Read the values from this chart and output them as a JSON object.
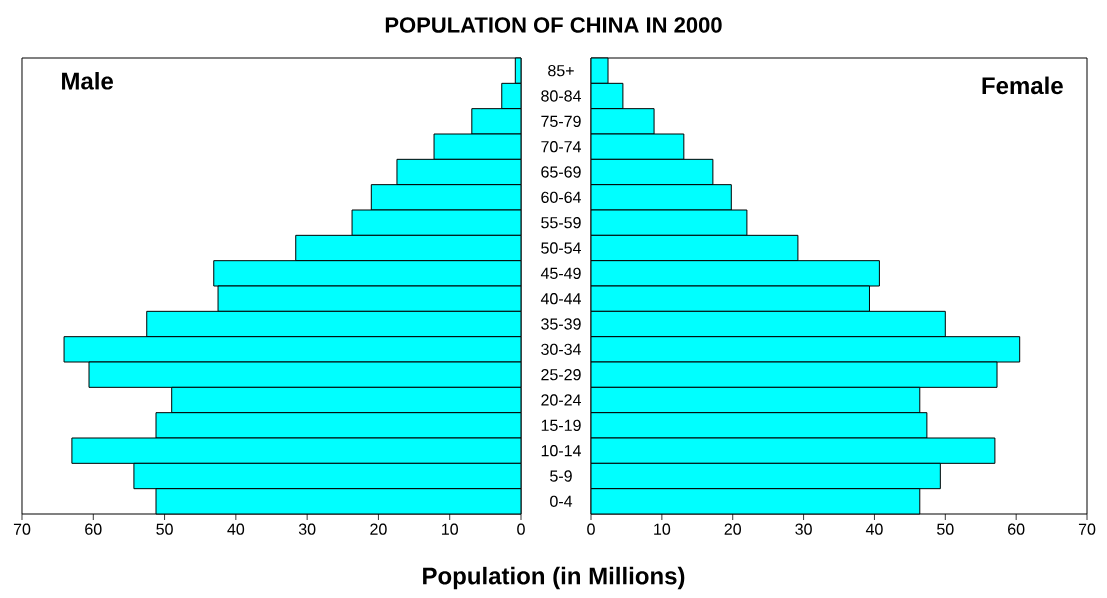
{
  "chart_data": [
    {
      "type": "bar",
      "orientation": "horizontal",
      "title": "POPULATION OF CHINA IN 2000",
      "xlabel": "Population (in Millions)",
      "categories": [
        "85+",
        "80-84",
        "75-79",
        "70-74",
        "65-69",
        "60-64",
        "55-59",
        "50-54",
        "45-49",
        "40-44",
        "35-39",
        "30-34",
        "25-29",
        "20-24",
        "15-19",
        "10-14",
        "5-9",
        "0-4"
      ],
      "series": [
        {
          "name": "Male",
          "color": "#00ffff",
          "values": [
            0.8,
            2.7,
            6.9,
            12.2,
            17.4,
            21.0,
            23.7,
            31.6,
            43.1,
            42.5,
            52.5,
            64.1,
            60.6,
            49.0,
            51.2,
            63.0,
            54.3,
            51.2
          ]
        }
      ],
      "xlim": [
        70,
        0
      ],
      "xticks": [
        70,
        60,
        50,
        40,
        30,
        20,
        10,
        0
      ]
    },
    {
      "type": "bar",
      "orientation": "horizontal",
      "categories": [
        null,
        null,
        null,
        null,
        null,
        null,
        null,
        null,
        null,
        null,
        null,
        null,
        null,
        null,
        null,
        null,
        null,
        null
      ],
      "series": [
        {
          "name": "Female",
          "color": "#00ffff",
          "values": [
            2.4,
            4.5,
            8.9,
            13.1,
            17.2,
            19.8,
            22.0,
            29.2,
            40.7,
            39.3,
            50.0,
            60.5,
            57.3,
            46.4,
            47.4,
            57.0,
            49.3,
            46.4
          ]
        }
      ],
      "xlim": [
        0,
        70
      ],
      "xticks": [
        0,
        10,
        20,
        30,
        40,
        50,
        60,
        70
      ],
      "tick_labels": "x"
    }
  ]
}
